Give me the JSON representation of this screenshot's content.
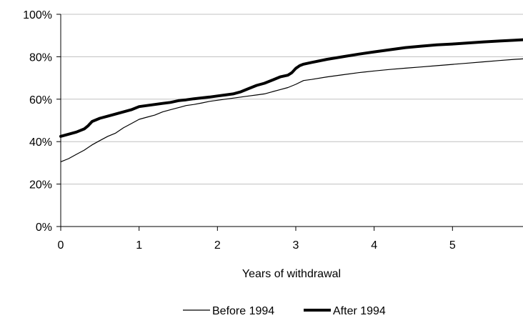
{
  "chart_data": {
    "type": "line",
    "title": "",
    "xlabel": "Years of withdrawal",
    "ylabel": "",
    "xlim": [
      0,
      5.9
    ],
    "ylim": [
      0,
      100
    ],
    "x_ticks": [
      0,
      1,
      2,
      3,
      4,
      5
    ],
    "x_tick_labels": [
      "0",
      "1",
      "2",
      "3",
      "4",
      "5"
    ],
    "y_ticks": [
      0,
      20,
      40,
      60,
      80,
      100
    ],
    "y_tick_labels": [
      "0%",
      "20%",
      "40%",
      "60%",
      "80%",
      "100%"
    ],
    "grid": "horizontal",
    "legend_position": "bottom",
    "series": [
      {
        "name": "Before 1994",
        "color": "#000000",
        "line_weight": "thin",
        "x": [
          0,
          0.1,
          0.2,
          0.3,
          0.4,
          0.5,
          0.6,
          0.7,
          0.8,
          0.9,
          1.0,
          1.1,
          1.2,
          1.3,
          1.4,
          1.5,
          1.6,
          1.7,
          1.8,
          1.9,
          2.0,
          2.1,
          2.2,
          2.3,
          2.4,
          2.5,
          2.6,
          2.7,
          2.8,
          2.9,
          3.0,
          3.1,
          3.2,
          3.4,
          3.6,
          3.8,
          4.0,
          4.2,
          4.4,
          4.6,
          4.8,
          5.0,
          5.2,
          5.4,
          5.6,
          5.8,
          5.9
        ],
        "y": [
          30.5,
          32.0,
          34.0,
          36.0,
          38.5,
          40.5,
          42.5,
          44.0,
          46.5,
          48.5,
          50.5,
          51.5,
          52.5,
          54.0,
          55.0,
          56.0,
          57.0,
          57.5,
          58.2,
          59.0,
          59.5,
          60.0,
          60.5,
          61.0,
          61.5,
          62.0,
          62.5,
          63.5,
          64.5,
          65.5,
          67.0,
          68.8,
          69.3,
          70.5,
          71.5,
          72.5,
          73.3,
          74.0,
          74.6,
          75.2,
          75.8,
          76.4,
          77.0,
          77.6,
          78.2,
          78.8,
          79.0
        ]
      },
      {
        "name": "After 1994",
        "color": "#000000",
        "line_weight": "thick",
        "x": [
          0,
          0.1,
          0.2,
          0.3,
          0.35,
          0.4,
          0.5,
          0.6,
          0.7,
          0.8,
          0.9,
          1.0,
          1.1,
          1.2,
          1.3,
          1.4,
          1.5,
          1.6,
          1.7,
          1.8,
          1.9,
          2.0,
          2.1,
          2.2,
          2.3,
          2.4,
          2.5,
          2.6,
          2.7,
          2.8,
          2.9,
          2.95,
          3.0,
          3.05,
          3.1,
          3.2,
          3.4,
          3.6,
          3.8,
          4.0,
          4.2,
          4.4,
          4.6,
          4.8,
          5.0,
          5.2,
          5.4,
          5.6,
          5.8,
          5.9
        ],
        "y": [
          42.5,
          43.5,
          44.5,
          46.0,
          47.5,
          49.5,
          51.0,
          52.0,
          53.0,
          54.0,
          55.0,
          56.5,
          57.0,
          57.5,
          58.0,
          58.5,
          59.3,
          59.7,
          60.2,
          60.6,
          61.0,
          61.5,
          62.0,
          62.5,
          63.5,
          65.0,
          66.5,
          67.5,
          69.0,
          70.5,
          71.3,
          72.5,
          74.5,
          75.8,
          76.5,
          77.3,
          78.8,
          80.0,
          81.2,
          82.3,
          83.3,
          84.3,
          85.0,
          85.6,
          86.0,
          86.5,
          87.0,
          87.4,
          87.8,
          88.0
        ]
      }
    ]
  }
}
